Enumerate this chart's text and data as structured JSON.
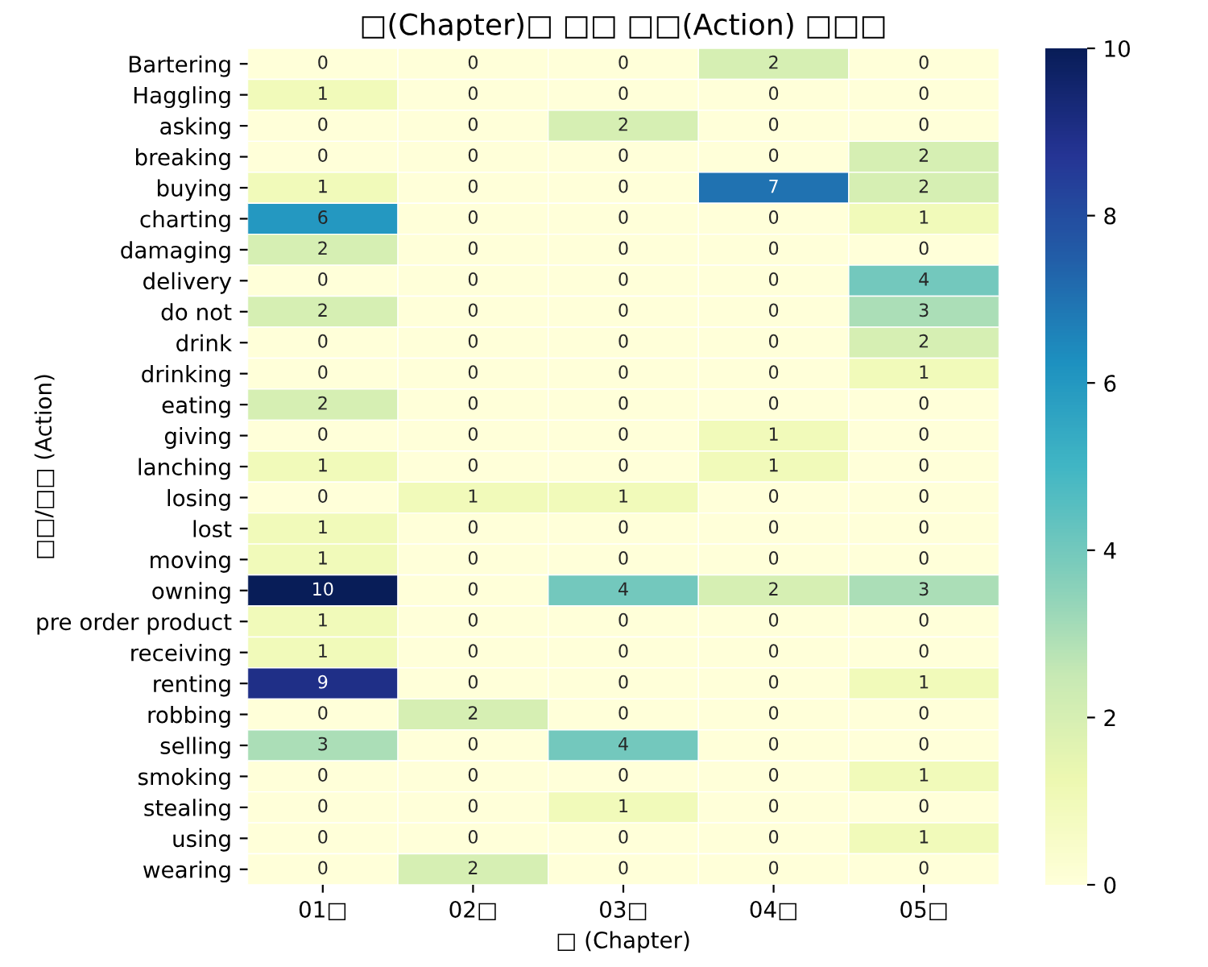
{
  "chart_data": {
    "type": "heatmap",
    "title": "□(Chapter)□ □□ □□(Action) □□□",
    "xlabel": "□ (Chapter)",
    "ylabel": "□□/□□ (Action)",
    "categories": [
      "01□",
      "02□",
      "03□",
      "04□",
      "05□"
    ],
    "y_categories": [
      "Bartering",
      "Haggling",
      "asking",
      "breaking",
      "buying",
      "charting",
      "damaging",
      "delivery",
      "do not",
      "drink",
      "drinking",
      "eating",
      "giving",
      "lanching",
      "losing",
      "lost",
      "moving",
      "owning",
      "pre order product",
      "receiving",
      "renting",
      "robbing",
      "selling",
      "smoking",
      "stealing",
      "using",
      "wearing"
    ],
    "cells": [
      [
        0,
        0,
        0,
        2,
        0
      ],
      [
        1,
        0,
        0,
        0,
        0
      ],
      [
        0,
        0,
        2,
        0,
        0
      ],
      [
        0,
        0,
        0,
        0,
        2
      ],
      [
        1,
        0,
        0,
        7,
        2
      ],
      [
        6,
        0,
        0,
        0,
        1
      ],
      [
        2,
        0,
        0,
        0,
        0
      ],
      [
        0,
        0,
        0,
        0,
        4
      ],
      [
        2,
        0,
        0,
        0,
        3
      ],
      [
        0,
        0,
        0,
        0,
        2
      ],
      [
        0,
        0,
        0,
        0,
        1
      ],
      [
        2,
        0,
        0,
        0,
        0
      ],
      [
        0,
        0,
        0,
        1,
        0
      ],
      [
        1,
        0,
        0,
        1,
        0
      ],
      [
        0,
        1,
        1,
        0,
        0
      ],
      [
        1,
        0,
        0,
        0,
        0
      ],
      [
        1,
        0,
        0,
        0,
        0
      ],
      [
        10,
        0,
        4,
        2,
        3
      ],
      [
        1,
        0,
        0,
        0,
        0
      ],
      [
        1,
        0,
        0,
        0,
        0
      ],
      [
        9,
        0,
        0,
        0,
        1
      ],
      [
        0,
        2,
        0,
        0,
        0
      ],
      [
        3,
        0,
        4,
        0,
        0
      ],
      [
        0,
        0,
        0,
        0,
        1
      ],
      [
        0,
        0,
        1,
        0,
        0
      ],
      [
        0,
        0,
        0,
        0,
        1
      ],
      [
        0,
        2,
        0,
        0,
        0
      ]
    ],
    "clim": [
      0,
      10
    ],
    "cticks": [
      0,
      2,
      4,
      6,
      8,
      10
    ],
    "data_labels": true
  }
}
